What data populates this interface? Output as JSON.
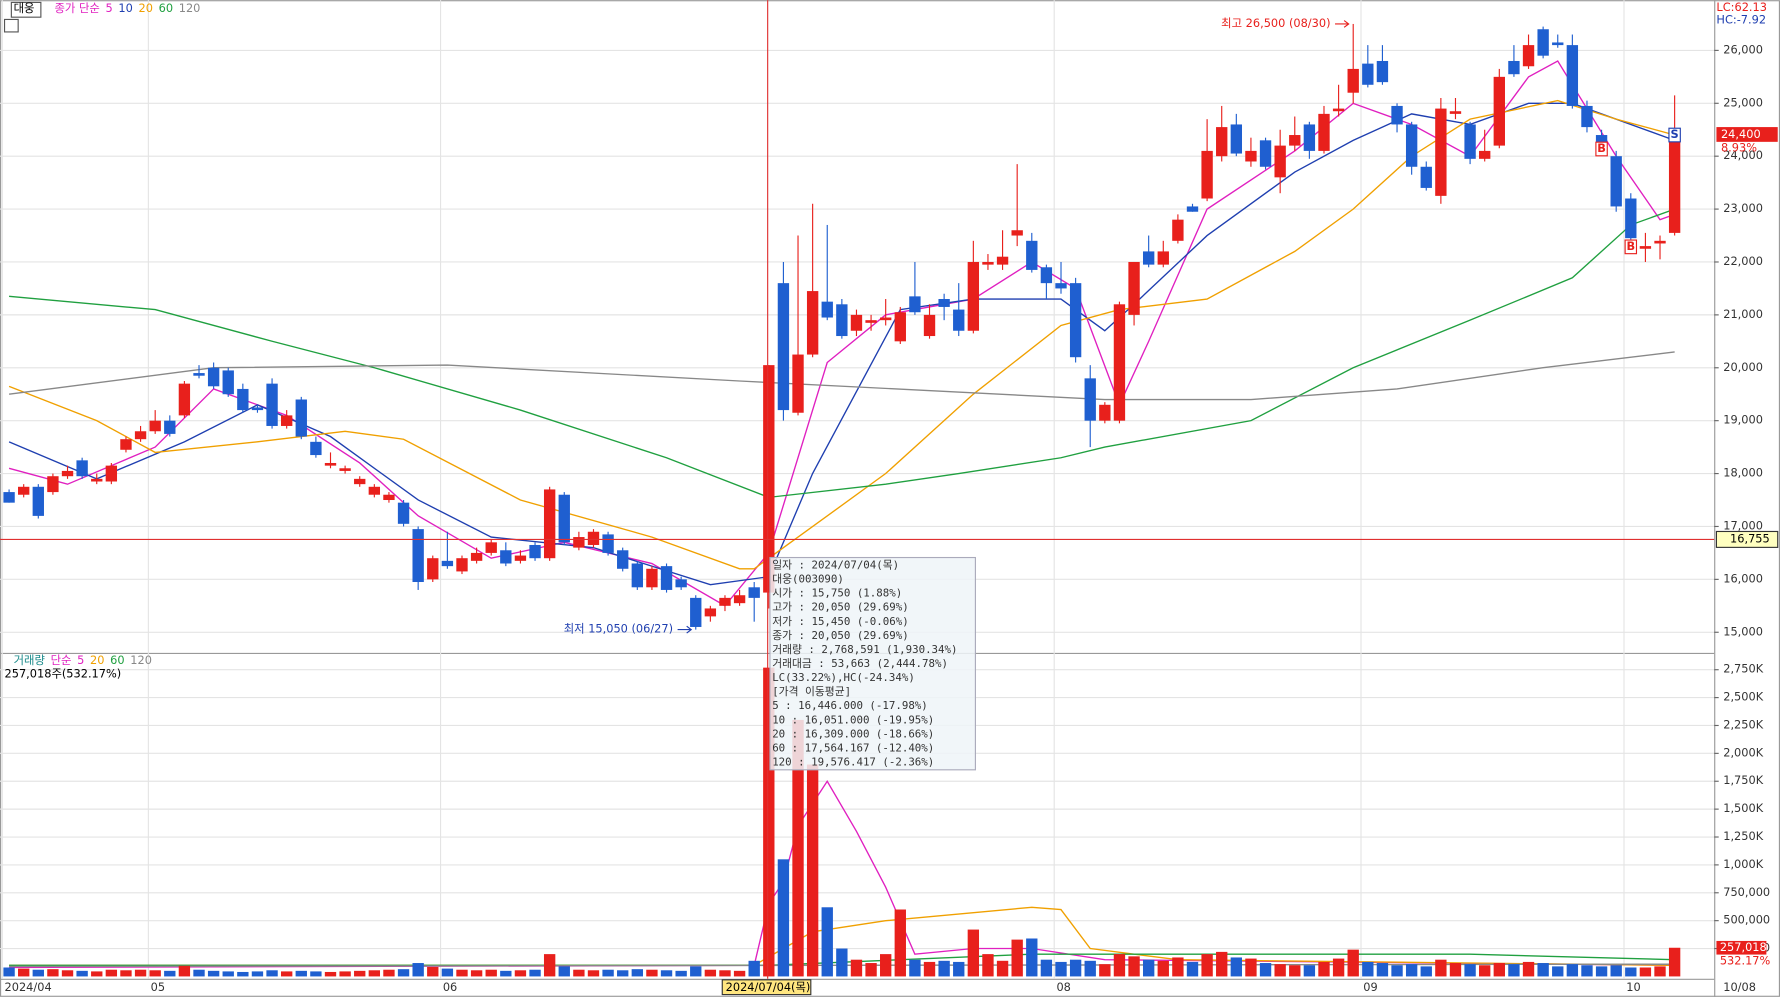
{
  "chart_data": {
    "type": "candlestick",
    "title": "대웅",
    "legend_label": "종가 단순",
    "up_color": "#e8201c",
    "down_color": "#1f5fd0",
    "ylim": [
      14610,
      26950
    ],
    "yticks": [
      {
        "value": 15000,
        "label": "15,000"
      },
      {
        "value": 16000,
        "label": "16,000"
      },
      {
        "value": 17000,
        "label": "17,000"
      },
      {
        "value": 18000,
        "label": "18,000"
      },
      {
        "value": 19000,
        "label": "19,000"
      },
      {
        "value": 20000,
        "label": "20,000"
      },
      {
        "value": 21000,
        "label": "21,000"
      },
      {
        "value": 22000,
        "label": "22,000"
      },
      {
        "value": 23000,
        "label": "23,000"
      },
      {
        "value": 24000,
        "label": "24,000"
      },
      {
        "value": 25000,
        "label": "25,000"
      },
      {
        "value": 26000,
        "label": "26,000"
      }
    ],
    "xticks": [
      {
        "value": 0,
        "label": "2024/04"
      },
      {
        "value": 10,
        "label": "05"
      },
      {
        "value": 30,
        "label": "06"
      },
      {
        "value": 72,
        "label": "08"
      },
      {
        "value": 93,
        "label": "09"
      },
      {
        "value": 111,
        "label": "10"
      }
    ],
    "last_date": "10/08",
    "candles": [
      [
        17650,
        17700,
        17450,
        17450
      ],
      [
        17600,
        17800,
        17550,
        17750
      ],
      [
        17750,
        17800,
        17150,
        17200
      ],
      [
        17650,
        18000,
        17600,
        17950
      ],
      [
        17950,
        18150,
        17900,
        18050
      ],
      [
        18250,
        18300,
        17900,
        17950
      ],
      [
        17850,
        18000,
        17800,
        17900
      ],
      [
        17850,
        18200,
        17800,
        18150
      ],
      [
        18450,
        18700,
        18400,
        18650
      ],
      [
        18650,
        18900,
        18600,
        18800
      ],
      [
        18800,
        19200,
        18750,
        19000
      ],
      [
        19000,
        19100,
        18700,
        18750
      ],
      [
        19100,
        19750,
        19050,
        19700
      ],
      [
        19900,
        20050,
        19800,
        19850
      ],
      [
        20000,
        20100,
        19600,
        19650
      ],
      [
        19950,
        20000,
        19450,
        19500
      ],
      [
        19600,
        19700,
        19150,
        19200
      ],
      [
        19250,
        19300,
        19150,
        19200
      ],
      [
        19700,
        19800,
        18850,
        18900
      ],
      [
        18900,
        19200,
        18850,
        19100
      ],
      [
        19400,
        19450,
        18650,
        18700
      ],
      [
        18600,
        18700,
        18300,
        18350
      ],
      [
        18150,
        18400,
        18100,
        18200
      ],
      [
        18050,
        18150,
        18000,
        18100
      ],
      [
        17800,
        17950,
        17750,
        17900
      ],
      [
        17600,
        17800,
        17550,
        17750
      ],
      [
        17500,
        17650,
        17450,
        17600
      ],
      [
        17450,
        17500,
        17000,
        17050
      ],
      [
        16950,
        17000,
        15800,
        15950
      ],
      [
        16000,
        16450,
        15950,
        16400
      ],
      [
        16350,
        16900,
        16200,
        16250
      ],
      [
        16150,
        16450,
        16100,
        16400
      ],
      [
        16350,
        16600,
        16300,
        16500
      ],
      [
        16500,
        16750,
        16450,
        16700
      ],
      [
        16550,
        16700,
        16250,
        16300
      ],
      [
        16350,
        16550,
        16300,
        16450
      ],
      [
        16650,
        16700,
        16350,
        16400
      ],
      [
        16400,
        17750,
        16350,
        17700
      ],
      [
        17600,
        17650,
        16650,
        16700
      ],
      [
        16600,
        16900,
        16550,
        16800
      ],
      [
        16650,
        16950,
        16600,
        16900
      ],
      [
        16850,
        16900,
        16450,
        16500
      ],
      [
        16550,
        16600,
        16150,
        16200
      ],
      [
        16300,
        16350,
        15800,
        15850
      ],
      [
        15850,
        16250,
        15800,
        16200
      ],
      [
        16250,
        16300,
        15750,
        15800
      ],
      [
        16000,
        16050,
        15800,
        15850
      ],
      [
        15650,
        15700,
        15050,
        15100
      ],
      [
        15300,
        15500,
        15200,
        15450
      ],
      [
        15500,
        15700,
        15400,
        15650
      ],
      [
        15550,
        15800,
        15500,
        15700
      ],
      [
        15850,
        15950,
        15200,
        15650
      ],
      [
        15750,
        20050,
        15450,
        20050
      ],
      [
        21600,
        22000,
        19000,
        19200
      ],
      [
        19150,
        22500,
        19100,
        20250
      ],
      [
        20250,
        23100,
        20200,
        21450
      ],
      [
        21250,
        22700,
        20900,
        20950
      ],
      [
        21200,
        21300,
        20550,
        20600
      ],
      [
        20700,
        21100,
        20600,
        21000
      ],
      [
        20850,
        21000,
        20700,
        20900
      ],
      [
        20900,
        21300,
        20800,
        20950
      ],
      [
        20500,
        21150,
        20450,
        21050
      ],
      [
        21350,
        22000,
        21000,
        21050
      ],
      [
        20600,
        21200,
        20550,
        21000
      ],
      [
        21300,
        21400,
        20900,
        21150
      ],
      [
        21100,
        21600,
        20600,
        20700
      ],
      [
        20700,
        22400,
        20650,
        22000
      ],
      [
        21950,
        22150,
        21850,
        22000
      ],
      [
        21950,
        22600,
        21850,
        22100
      ],
      [
        22500,
        23850,
        22300,
        22600
      ],
      [
        22400,
        22550,
        21800,
        21850
      ],
      [
        21900,
        21950,
        21300,
        21600
      ],
      [
        21600,
        22000,
        21400,
        21500
      ],
      [
        21600,
        21700,
        20100,
        20200
      ],
      [
        19800,
        20050,
        18500,
        19000
      ],
      [
        19000,
        19350,
        18950,
        19300
      ],
      [
        19000,
        21250,
        18950,
        21200
      ],
      [
        21000,
        22000,
        20800,
        22000
      ],
      [
        22200,
        22500,
        21900,
        21950
      ],
      [
        21950,
        22400,
        21900,
        22200
      ],
      [
        22400,
        22900,
        22350,
        22800
      ],
      [
        23050,
        23100,
        22950,
        22950
      ],
      [
        23200,
        24700,
        23150,
        24100
      ],
      [
        24000,
        24950,
        23900,
        24550
      ],
      [
        24600,
        24800,
        24000,
        24050
      ],
      [
        23900,
        24350,
        23800,
        24100
      ],
      [
        24300,
        24350,
        23750,
        23800
      ],
      [
        23600,
        24500,
        23300,
        24200
      ],
      [
        24200,
        24750,
        24100,
        24400
      ],
      [
        24600,
        24650,
        23950,
        24100
      ],
      [
        24100,
        24950,
        24050,
        24800
      ],
      [
        24850,
        25350,
        24750,
        24900
      ],
      [
        25200,
        26500,
        25000,
        25650
      ],
      [
        25750,
        26100,
        25300,
        25350
      ],
      [
        25800,
        26100,
        25350,
        25400
      ],
      [
        24950,
        25000,
        24450,
        24600
      ],
      [
        24600,
        24650,
        23650,
        23800
      ],
      [
        23800,
        23900,
        23350,
        23400
      ],
      [
        23250,
        25100,
        23100,
        24900
      ],
      [
        24800,
        25100,
        24700,
        24850
      ],
      [
        24600,
        24650,
        23850,
        23950
      ],
      [
        23950,
        24500,
        23900,
        24100
      ],
      [
        24200,
        25650,
        24150,
        25500
      ],
      [
        25800,
        26100,
        25500,
        25550
      ],
      [
        25700,
        26300,
        25650,
        26100
      ],
      [
        26400,
        26450,
        25850,
        25900
      ],
      [
        26150,
        26300,
        26050,
        26100
      ],
      [
        26100,
        26300,
        24900,
        24950
      ],
      [
        24950,
        25050,
        24450,
        24550
      ],
      [
        24400,
        24500,
        24050,
        24100
      ],
      [
        24000,
        24100,
        22950,
        23050
      ],
      [
        23200,
        23300,
        22200,
        22450
      ],
      [
        22250,
        22550,
        22000,
        22300
      ],
      [
        22350,
        22500,
        22050,
        22400
      ],
      [
        22550,
        25150,
        22500,
        24400
      ]
    ],
    "ma": [
      {
        "name": "5",
        "color": "#e020c0",
        "x": [
          0,
          4,
          10,
          14,
          19,
          24,
          28,
          33,
          38,
          44,
          49,
          52,
          56,
          60,
          66,
          70,
          73,
          76,
          78,
          82,
          88,
          92,
          96,
          100,
          104,
          106,
          110,
          113,
          114
        ],
        "values": [
          18100,
          17800,
          18500,
          19600,
          19100,
          18200,
          17200,
          16400,
          16700,
          16300,
          15500,
          16500,
          20100,
          21000,
          21300,
          22000,
          21500,
          19300,
          20500,
          23000,
          24100,
          25000,
          24600,
          24000,
          25500,
          25800,
          24000,
          22800,
          22900
        ]
      },
      {
        "name": "10",
        "color": "#1f3fb0",
        "x": [
          0,
          6,
          12,
          17,
          22,
          28,
          33,
          40,
          48,
          52,
          55,
          61,
          66,
          72,
          75,
          77,
          82,
          88,
          92,
          96,
          100,
          104,
          107,
          114
        ],
        "values": [
          18600,
          17900,
          18600,
          19300,
          18700,
          17500,
          16800,
          16600,
          15900,
          16050,
          18000,
          21100,
          21300,
          21300,
          20700,
          21200,
          22500,
          23700,
          24300,
          24800,
          24600,
          25000,
          25000,
          24300
        ]
      },
      {
        "name": "20",
        "color": "#f0a000",
        "x": [
          0,
          6,
          10,
          17,
          23,
          27,
          35,
          44,
          50,
          51,
          54,
          60,
          66,
          72,
          76,
          82,
          88,
          92,
          96,
          100,
          106,
          110,
          114
        ],
        "values": [
          19650,
          19000,
          18400,
          18600,
          18800,
          18650,
          17500,
          16800,
          16200,
          16200,
          16800,
          18000,
          19500,
          20800,
          21100,
          21300,
          22200,
          23000,
          24000,
          24700,
          25050,
          24700,
          24400
        ]
      },
      {
        "name": "60",
        "color": "#20a040",
        "x": [
          0,
          10,
          18,
          25,
          35,
          45,
          52,
          60,
          65,
          72,
          75,
          85,
          92,
          100,
          107,
          111,
          114
        ],
        "values": [
          21350,
          21100,
          20500,
          20000,
          19200,
          18300,
          17550,
          17800,
          18000,
          18300,
          18500,
          19000,
          20000,
          20900,
          21700,
          22700,
          23000
        ]
      },
      {
        "name": "120",
        "color": "#888888",
        "x": [
          0,
          14,
          30,
          50,
          75,
          85,
          95,
          105,
          114
        ],
        "values": [
          19500,
          20000,
          20050,
          19750,
          19400,
          19400,
          19600,
          20000,
          20300
        ]
      }
    ],
    "volume": {
      "label": "거래량",
      "legend_label": "단순",
      "current": "257,018주(532.17%)",
      "values": [
        80000,
        70000,
        60000,
        65000,
        55000,
        50000,
        45000,
        60000,
        55000,
        60000,
        55000,
        50000,
        95000,
        60000,
        50000,
        45000,
        40000,
        45000,
        55000,
        45000,
        50000,
        45000,
        40000,
        45000,
        50000,
        55000,
        60000,
        65000,
        120000,
        85000,
        70000,
        60000,
        55000,
        60000,
        50000,
        55000,
        60000,
        200000,
        90000,
        60000,
        55000,
        60000,
        55000,
        65000,
        60000,
        55000,
        50000,
        90000,
        60000,
        55000,
        50000,
        140000,
        2768591,
        1050000,
        2300000,
        1900000,
        620000,
        250000,
        150000,
        120000,
        200000,
        600000,
        150000,
        130000,
        140000,
        130000,
        420000,
        200000,
        140000,
        330000,
        340000,
        150000,
        130000,
        150000,
        140000,
        110000,
        200000,
        180000,
        150000,
        140000,
        170000,
        130000,
        200000,
        220000,
        170000,
        160000,
        120000,
        110000,
        100000,
        100000,
        130000,
        160000,
        240000,
        130000,
        120000,
        100000,
        110000,
        90000,
        150000,
        120000,
        110000,
        100000,
        120000,
        110000,
        130000,
        120000,
        90000,
        110000,
        100000,
        90000,
        100000,
        80000,
        80000,
        90000,
        257018
      ],
      "ma": [
        {
          "name": "5",
          "color": "#e020c0",
          "x": [
            0,
            51,
            52,
            53,
            54,
            56,
            58,
            60,
            62,
            66,
            70,
            75,
            114
          ],
          "values": [
            80000,
            100000,
            650000,
            850000,
            1350000,
            1750000,
            1300000,
            800000,
            200000,
            250000,
            250000,
            150000,
            100000
          ]
        },
        {
          "name": "20",
          "color": "#f0a000",
          "x": [
            0,
            51,
            55,
            60,
            70,
            72,
            74,
            80,
            114
          ],
          "values": [
            100000,
            100000,
            400000,
            500000,
            620000,
            600000,
            250000,
            150000,
            100000
          ]
        },
        {
          "name": "60",
          "color": "#20a040",
          "x": [
            0,
            52,
            70,
            100,
            114
          ],
          "values": [
            100000,
            100000,
            200000,
            200000,
            150000
          ]
        },
        {
          "name": "120",
          "color": "#888888",
          "x": [
            0,
            114
          ],
          "values": [
            90000,
            110000
          ]
        }
      ],
      "ylim": [
        0,
        2850000
      ],
      "yticks": [
        {
          "value": 250000,
          "label": "250,000"
        },
        {
          "value": 500000,
          "label": "500,000"
        },
        {
          "value": 750000,
          "label": "750,000"
        },
        {
          "value": 1000000,
          "label": "1,000K"
        },
        {
          "value": 1250000,
          "label": "1,250K"
        },
        {
          "value": 1500000,
          "label": "1,500K"
        },
        {
          "value": 1750000,
          "label": "1,750K"
        },
        {
          "value": 2000000,
          "label": "2,000K"
        },
        {
          "value": 2250000,
          "label": "2,250K"
        },
        {
          "value": 2500000,
          "label": "2,500K"
        },
        {
          "value": 2750000,
          "label": "2,750K"
        }
      ],
      "last": {
        "value": 257018,
        "label": "257,018"
      },
      "last_change": "532.17%"
    },
    "lc": "LC:62.13",
    "hc": "HC:-7.92",
    "last_price": {
      "value": 24400,
      "label": "24,400"
    },
    "last_change": "8.93%",
    "crosshair": {
      "index": 52,
      "price": {
        "value": 16755,
        "label": "16,755"
      },
      "date": "2024/07/04(목)"
    },
    "annotations": [
      {
        "text": "최고 26,500 (08/30)",
        "index": 92,
        "value": 26500
      },
      {
        "text": "최저 15,050 (06/27)",
        "index": 47,
        "value": 15050
      }
    ],
    "signals": [
      {
        "text": "S",
        "index": 114
      },
      {
        "text": "B",
        "index": 109
      },
      {
        "text": "B",
        "index": 111
      }
    ],
    "tooltip": [
      "일자    : 2024/07/04(목)",
      "대웅(003090)",
      "시가    : 15,750 (1.88%)",
      "고가    : 20,050 (29.69%)",
      "저가    : 15,450 (-0.06%)",
      "종가    : 20,050 (29.69%)",
      "거래량  : 2,768,591 (1,930.34%)",
      "거래대금 : 53,663 (2,444.78%)",
      "LC(33.22%),HC(-24.34%)",
      "[가격 이동평균]",
      "5       : 16,446.000 (-17.98%)",
      "10      : 16,051.000 (-19.95%)",
      "20      : 16,309.000 (-18.66%)",
      "60      : 17,564.167 (-12.40%)",
      "120     : 19,576.417 (-2.36%)"
    ]
  }
}
